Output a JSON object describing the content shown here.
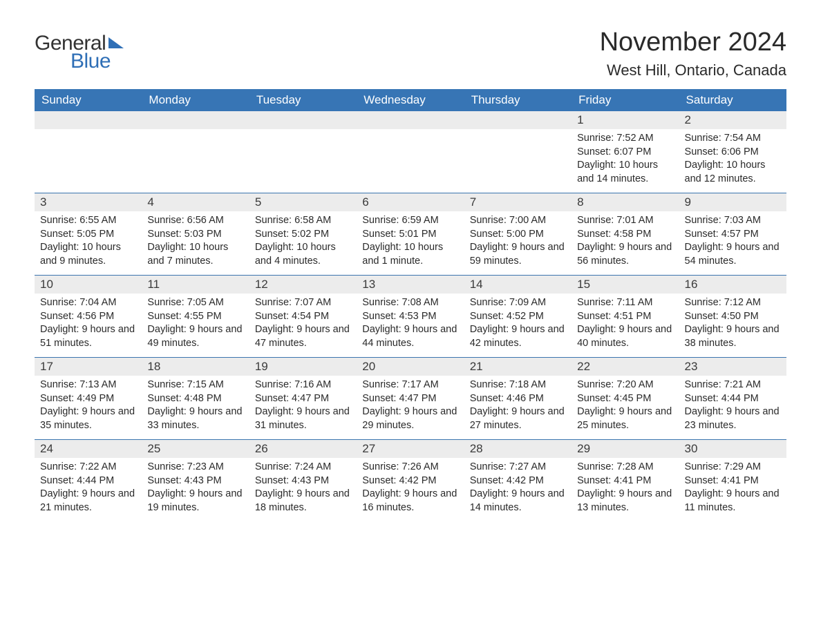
{
  "logo": {
    "word1": "General",
    "word2": "Blue"
  },
  "title": "November 2024",
  "location": "West Hill, Ontario, Canada",
  "colors": {
    "header_bg": "#3775b5",
    "header_text": "#ffffff",
    "daynum_bg": "#ececec",
    "body_text": "#2a2a2a",
    "week_border": "#3a74ae",
    "logo_accent": "#2f6fb6",
    "background": "#ffffff"
  },
  "typography": {
    "title_fontsize": 38,
    "location_fontsize": 22,
    "dow_fontsize": 17,
    "daynum_fontsize": 17,
    "body_fontsize": 14.5,
    "font_family": "Arial"
  },
  "days_of_week": [
    "Sunday",
    "Monday",
    "Tuesday",
    "Wednesday",
    "Thursday",
    "Friday",
    "Saturday"
  ],
  "weeks": [
    [
      null,
      null,
      null,
      null,
      null,
      {
        "n": "1",
        "sunrise": "7:52 AM",
        "sunset": "6:07 PM",
        "daylight": "10 hours and 14 minutes."
      },
      {
        "n": "2",
        "sunrise": "7:54 AM",
        "sunset": "6:06 PM",
        "daylight": "10 hours and 12 minutes."
      }
    ],
    [
      {
        "n": "3",
        "sunrise": "6:55 AM",
        "sunset": "5:05 PM",
        "daylight": "10 hours and 9 minutes."
      },
      {
        "n": "4",
        "sunrise": "6:56 AM",
        "sunset": "5:03 PM",
        "daylight": "10 hours and 7 minutes."
      },
      {
        "n": "5",
        "sunrise": "6:58 AM",
        "sunset": "5:02 PM",
        "daylight": "10 hours and 4 minutes."
      },
      {
        "n": "6",
        "sunrise": "6:59 AM",
        "sunset": "5:01 PM",
        "daylight": "10 hours and 1 minute."
      },
      {
        "n": "7",
        "sunrise": "7:00 AM",
        "sunset": "5:00 PM",
        "daylight": "9 hours and 59 minutes."
      },
      {
        "n": "8",
        "sunrise": "7:01 AM",
        "sunset": "4:58 PM",
        "daylight": "9 hours and 56 minutes."
      },
      {
        "n": "9",
        "sunrise": "7:03 AM",
        "sunset": "4:57 PM",
        "daylight": "9 hours and 54 minutes."
      }
    ],
    [
      {
        "n": "10",
        "sunrise": "7:04 AM",
        "sunset": "4:56 PM",
        "daylight": "9 hours and 51 minutes."
      },
      {
        "n": "11",
        "sunrise": "7:05 AM",
        "sunset": "4:55 PM",
        "daylight": "9 hours and 49 minutes."
      },
      {
        "n": "12",
        "sunrise": "7:07 AM",
        "sunset": "4:54 PM",
        "daylight": "9 hours and 47 minutes."
      },
      {
        "n": "13",
        "sunrise": "7:08 AM",
        "sunset": "4:53 PM",
        "daylight": "9 hours and 44 minutes."
      },
      {
        "n": "14",
        "sunrise": "7:09 AM",
        "sunset": "4:52 PM",
        "daylight": "9 hours and 42 minutes."
      },
      {
        "n": "15",
        "sunrise": "7:11 AM",
        "sunset": "4:51 PM",
        "daylight": "9 hours and 40 minutes."
      },
      {
        "n": "16",
        "sunrise": "7:12 AM",
        "sunset": "4:50 PM",
        "daylight": "9 hours and 38 minutes."
      }
    ],
    [
      {
        "n": "17",
        "sunrise": "7:13 AM",
        "sunset": "4:49 PM",
        "daylight": "9 hours and 35 minutes."
      },
      {
        "n": "18",
        "sunrise": "7:15 AM",
        "sunset": "4:48 PM",
        "daylight": "9 hours and 33 minutes."
      },
      {
        "n": "19",
        "sunrise": "7:16 AM",
        "sunset": "4:47 PM",
        "daylight": "9 hours and 31 minutes."
      },
      {
        "n": "20",
        "sunrise": "7:17 AM",
        "sunset": "4:47 PM",
        "daylight": "9 hours and 29 minutes."
      },
      {
        "n": "21",
        "sunrise": "7:18 AM",
        "sunset": "4:46 PM",
        "daylight": "9 hours and 27 minutes."
      },
      {
        "n": "22",
        "sunrise": "7:20 AM",
        "sunset": "4:45 PM",
        "daylight": "9 hours and 25 minutes."
      },
      {
        "n": "23",
        "sunrise": "7:21 AM",
        "sunset": "4:44 PM",
        "daylight": "9 hours and 23 minutes."
      }
    ],
    [
      {
        "n": "24",
        "sunrise": "7:22 AM",
        "sunset": "4:44 PM",
        "daylight": "9 hours and 21 minutes."
      },
      {
        "n": "25",
        "sunrise": "7:23 AM",
        "sunset": "4:43 PM",
        "daylight": "9 hours and 19 minutes."
      },
      {
        "n": "26",
        "sunrise": "7:24 AM",
        "sunset": "4:43 PM",
        "daylight": "9 hours and 18 minutes."
      },
      {
        "n": "27",
        "sunrise": "7:26 AM",
        "sunset": "4:42 PM",
        "daylight": "9 hours and 16 minutes."
      },
      {
        "n": "28",
        "sunrise": "7:27 AM",
        "sunset": "4:42 PM",
        "daylight": "9 hours and 14 minutes."
      },
      {
        "n": "29",
        "sunrise": "7:28 AM",
        "sunset": "4:41 PM",
        "daylight": "9 hours and 13 minutes."
      },
      {
        "n": "30",
        "sunrise": "7:29 AM",
        "sunset": "4:41 PM",
        "daylight": "9 hours and 11 minutes."
      }
    ]
  ],
  "labels": {
    "sunrise_prefix": "Sunrise: ",
    "sunset_prefix": "Sunset: ",
    "daylight_prefix": "Daylight: "
  }
}
